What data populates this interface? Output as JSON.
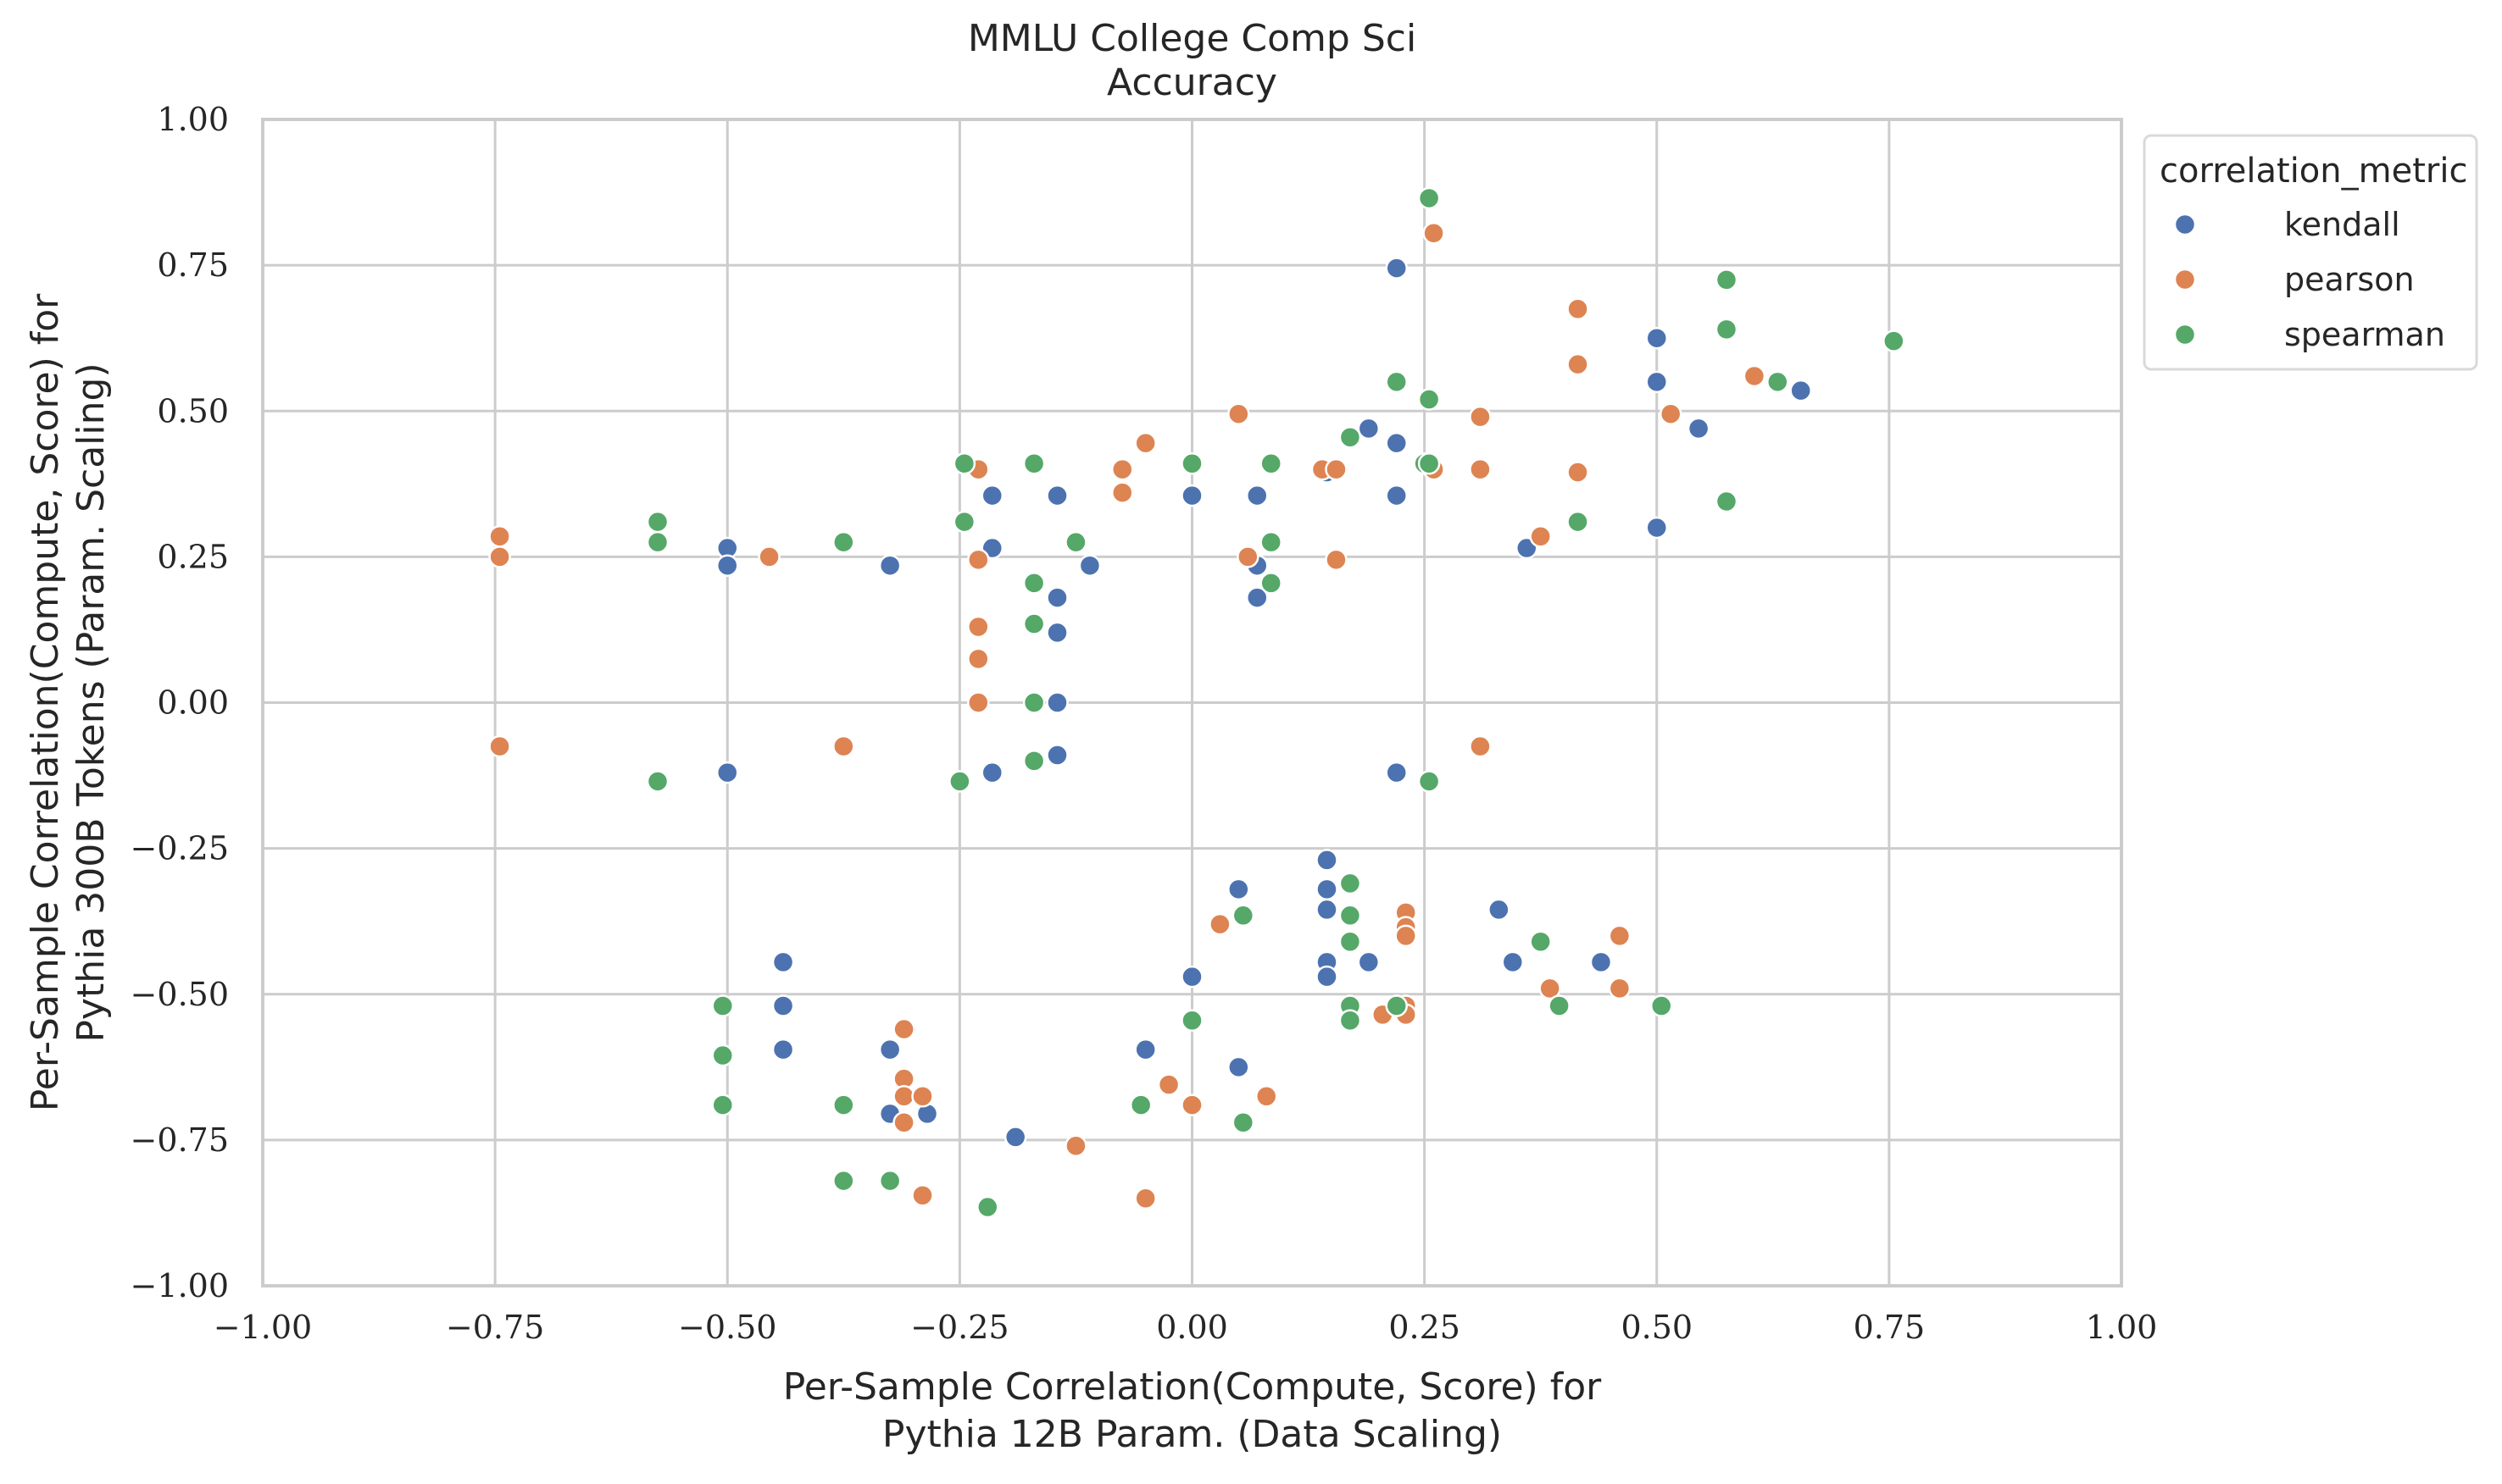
{
  "chart_data": {
    "type": "scatter",
    "title": [
      "MMLU College Comp Sci",
      "Accuracy"
    ],
    "xlabel": [
      "Per-Sample Correlation(Compute, Score) for",
      "Pythia 12B Param. (Data Scaling)"
    ],
    "ylabel": [
      "Per-Sample Correlation(Compute, Score) for",
      "Pythia 300B Tokens (Param. Scaling)"
    ],
    "xlim": [
      -1.0,
      1.0
    ],
    "ylim": [
      -1.0,
      1.0
    ],
    "xticks": [
      -1.0,
      -0.75,
      -0.5,
      -0.25,
      0.0,
      0.25,
      0.5,
      0.75,
      1.0
    ],
    "yticks": [
      -1.0,
      -0.75,
      -0.5,
      -0.25,
      0.0,
      0.25,
      0.5,
      0.75,
      1.0
    ],
    "xtick_labels": [
      "−1.00",
      "−0.75",
      "−0.50",
      "−0.25",
      "0.00",
      "0.25",
      "0.50",
      "0.75",
      "1.00"
    ],
    "ytick_labels": [
      "−1.00",
      "−0.75",
      "−0.50",
      "−0.25",
      "0.00",
      "0.25",
      "0.50",
      "0.75",
      "1.00"
    ],
    "grid": true,
    "legend": {
      "title": "correlation_metric",
      "placement": "outside upper right"
    },
    "series": [
      {
        "name": "kendall",
        "color": "#4c72b0",
        "points": [
          [
            -0.5,
            0.265
          ],
          [
            -0.5,
            0.235
          ],
          [
            -0.5,
            -0.12
          ],
          [
            -0.325,
            0.235
          ],
          [
            -0.215,
            0.355
          ],
          [
            -0.215,
            0.265
          ],
          [
            -0.215,
            -0.12
          ],
          [
            -0.145,
            0.355
          ],
          [
            -0.145,
            0.18
          ],
          [
            -0.145,
            0.12
          ],
          [
            -0.145,
            0.0
          ],
          [
            -0.145,
            -0.09
          ],
          [
            -0.11,
            0.235
          ],
          [
            0.0,
            0.355
          ],
          [
            0.07,
            0.355
          ],
          [
            0.07,
            0.235
          ],
          [
            0.07,
            0.18
          ],
          [
            0.145,
            0.395
          ],
          [
            0.19,
            0.47
          ],
          [
            0.22,
            0.745
          ],
          [
            0.22,
            0.445
          ],
          [
            0.22,
            0.355
          ],
          [
            0.22,
            -0.12
          ],
          [
            0.36,
            0.265
          ],
          [
            0.5,
            0.625
          ],
          [
            0.5,
            0.55
          ],
          [
            0.5,
            0.3
          ],
          [
            0.545,
            0.47
          ],
          [
            0.655,
            0.535
          ],
          [
            -0.44,
            -0.445
          ],
          [
            -0.44,
            -0.52
          ],
          [
            -0.44,
            -0.595
          ],
          [
            -0.325,
            -0.595
          ],
          [
            -0.325,
            -0.705
          ],
          [
            -0.285,
            -0.705
          ],
          [
            -0.19,
            -0.745
          ],
          [
            -0.05,
            -0.595
          ],
          [
            0.0,
            -0.47
          ],
          [
            0.05,
            -0.32
          ],
          [
            0.05,
            -0.625
          ],
          [
            0.145,
            -0.27
          ],
          [
            0.145,
            -0.32
          ],
          [
            0.145,
            -0.355
          ],
          [
            0.145,
            -0.445
          ],
          [
            0.145,
            -0.47
          ],
          [
            0.19,
            -0.445
          ],
          [
            0.22,
            -0.52
          ],
          [
            0.33,
            -0.355
          ],
          [
            0.345,
            -0.445
          ],
          [
            0.44,
            -0.445
          ]
        ]
      },
      {
        "name": "pearson",
        "color": "#dd8452",
        "points": [
          [
            -0.745,
            0.285
          ],
          [
            -0.745,
            0.25
          ],
          [
            -0.745,
            -0.075
          ],
          [
            -0.455,
            0.25
          ],
          [
            -0.375,
            -0.075
          ],
          [
            -0.23,
            0.4
          ],
          [
            -0.23,
            0.245
          ],
          [
            -0.23,
            0.13
          ],
          [
            -0.23,
            0.075
          ],
          [
            -0.23,
            0.0
          ],
          [
            -0.075,
            0.4
          ],
          [
            -0.075,
            0.36
          ],
          [
            -0.05,
            0.445
          ],
          [
            0.05,
            0.495
          ],
          [
            0.06,
            0.25
          ],
          [
            0.14,
            0.4
          ],
          [
            0.155,
            0.4
          ],
          [
            0.155,
            0.245
          ],
          [
            0.26,
            0.805
          ],
          [
            0.26,
            0.4
          ],
          [
            0.31,
            0.49
          ],
          [
            0.31,
            0.4
          ],
          [
            0.31,
            -0.075
          ],
          [
            0.375,
            0.285
          ],
          [
            0.415,
            0.675
          ],
          [
            0.415,
            0.58
          ],
          [
            0.415,
            0.395
          ],
          [
            0.515,
            0.495
          ],
          [
            0.605,
            0.56
          ],
          [
            -0.31,
            -0.56
          ],
          [
            -0.31,
            -0.645
          ],
          [
            -0.31,
            -0.675
          ],
          [
            -0.31,
            -0.72
          ],
          [
            -0.29,
            -0.675
          ],
          [
            -0.29,
            -0.845
          ],
          [
            -0.125,
            -0.76
          ],
          [
            -0.05,
            -0.85
          ],
          [
            -0.025,
            -0.655
          ],
          [
            0.0,
            -0.69
          ],
          [
            0.03,
            -0.38
          ],
          [
            0.08,
            -0.675
          ],
          [
            0.205,
            -0.535
          ],
          [
            0.23,
            -0.36
          ],
          [
            0.23,
            -0.385
          ],
          [
            0.23,
            -0.4
          ],
          [
            0.23,
            -0.52
          ],
          [
            0.23,
            -0.535
          ],
          [
            0.385,
            -0.49
          ],
          [
            0.46,
            -0.4
          ],
          [
            0.46,
            -0.49
          ]
        ]
      },
      {
        "name": "spearman",
        "color": "#55a868",
        "points": [
          [
            -0.575,
            0.31
          ],
          [
            -0.575,
            0.275
          ],
          [
            -0.575,
            -0.135
          ],
          [
            -0.375,
            0.275
          ],
          [
            -0.245,
            0.41
          ],
          [
            -0.245,
            0.31
          ],
          [
            -0.25,
            -0.135
          ],
          [
            -0.17,
            0.41
          ],
          [
            -0.17,
            0.205
          ],
          [
            -0.17,
            0.135
          ],
          [
            -0.17,
            0.0
          ],
          [
            -0.17,
            -0.1
          ],
          [
            -0.125,
            0.275
          ],
          [
            0.0,
            0.41
          ],
          [
            0.085,
            0.41
          ],
          [
            0.085,
            0.275
          ],
          [
            0.085,
            0.205
          ],
          [
            0.17,
            0.455
          ],
          [
            0.22,
            0.55
          ],
          [
            0.25,
            0.41
          ],
          [
            0.255,
            0.41
          ],
          [
            0.255,
            0.52
          ],
          [
            0.255,
            0.865
          ],
          [
            0.255,
            -0.135
          ],
          [
            0.415,
            0.31
          ],
          [
            0.575,
            0.725
          ],
          [
            0.575,
            0.64
          ],
          [
            0.575,
            0.345
          ],
          [
            0.63,
            0.55
          ],
          [
            0.755,
            0.62
          ],
          [
            -0.505,
            -0.52
          ],
          [
            -0.505,
            -0.605
          ],
          [
            -0.505,
            -0.69
          ],
          [
            -0.375,
            -0.69
          ],
          [
            -0.375,
            -0.82
          ],
          [
            -0.325,
            -0.82
          ],
          [
            -0.22,
            -0.865
          ],
          [
            -0.055,
            -0.69
          ],
          [
            0.0,
            -0.545
          ],
          [
            0.055,
            -0.365
          ],
          [
            0.055,
            -0.72
          ],
          [
            0.17,
            -0.31
          ],
          [
            0.17,
            -0.365
          ],
          [
            0.17,
            -0.41
          ],
          [
            0.17,
            -0.52
          ],
          [
            0.17,
            -0.545
          ],
          [
            0.22,
            -0.52
          ],
          [
            0.375,
            -0.41
          ],
          [
            0.395,
            -0.52
          ],
          [
            0.505,
            -0.52
          ]
        ]
      }
    ]
  }
}
